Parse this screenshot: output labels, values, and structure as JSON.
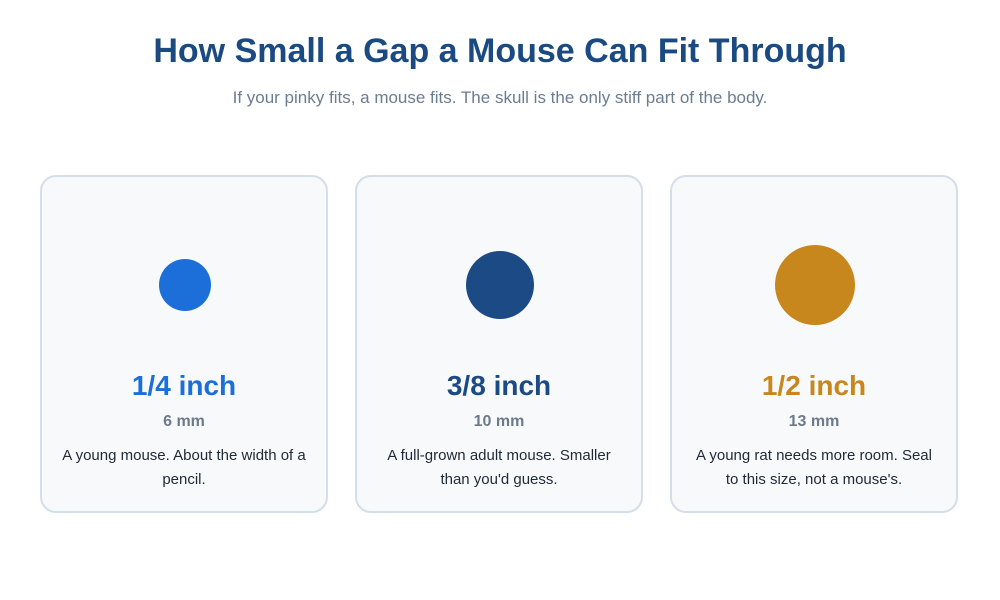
{
  "header": {
    "title": "How Small a Gap a Mouse Can Fit Through",
    "subtitle": "If your pinky fits, a mouse fits. The skull is the only stiff part of the body."
  },
  "cards": [
    {
      "size": "1/4 inch",
      "metric": "6 mm",
      "description": "A young mouse. About the width of a pencil.",
      "color": "#1c6fd8"
    },
    {
      "size": "3/8 inch",
      "metric": "10 mm",
      "description": "A full-grown adult mouse. Smaller than you'd guess.",
      "color": "#1b4a84"
    },
    {
      "size": "1/2 inch",
      "metric": "13 mm",
      "description": "A young rat needs more room. Seal to this size, not a mouse's.",
      "color": "#c8871c"
    }
  ]
}
